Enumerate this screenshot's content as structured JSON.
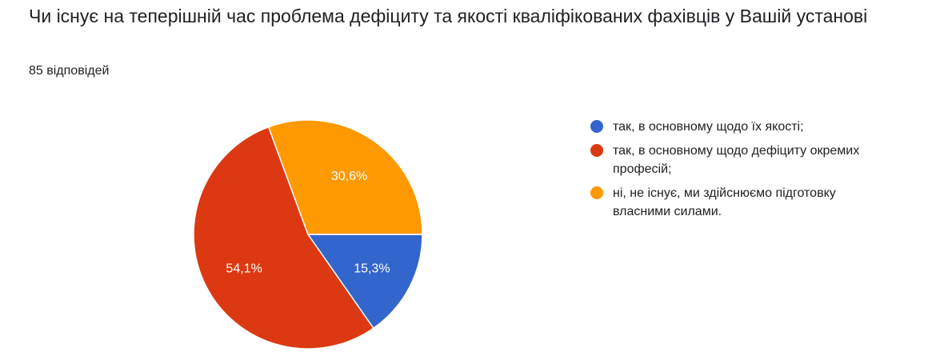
{
  "header": {
    "title": "Чи існує на теперішній час проблема дефіциту та якості кваліфікованих фахівців у Вашій установі",
    "response_count": "85 відповідей"
  },
  "chart_data": {
    "type": "pie",
    "title": "Чи існує на теперішній час проблема дефіциту та якості кваліфікованих фахівців у Вашій установі",
    "legend_position": "right",
    "slices": [
      {
        "label": "так, в основному щодо їх якості;",
        "value": 15.3,
        "display": "15,3%",
        "color": "#3366cc"
      },
      {
        "label": "так, в основному щодо дефіциту окремих професій;",
        "value": 54.1,
        "display": "54,1%",
        "color": "#dc3912"
      },
      {
        "label": "ні, не існує, ми здійснюємо підготовку власними силами.",
        "value": 30.6,
        "display": "30,6%",
        "color": "#ff9900"
      }
    ]
  }
}
